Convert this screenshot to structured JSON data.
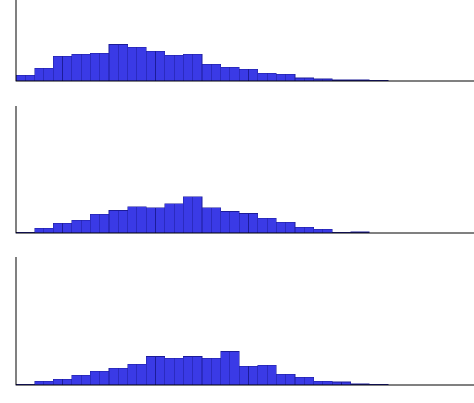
{
  "page": {
    "background": "#ffffff"
  },
  "colors": {
    "bar_fill": "#3a3ae6",
    "bar_edge": "#1c1c99",
    "axis": "#000000"
  },
  "chart_data": [
    {
      "type": "bar",
      "title": "",
      "xlabel": "",
      "ylabel": "",
      "grid": false,
      "legend": "none",
      "values": [
        6,
        6,
        13,
        13,
        25,
        25,
        27,
        27,
        28,
        28,
        37,
        37,
        34,
        34,
        30,
        30,
        26,
        26,
        27,
        27,
        17,
        17,
        14,
        14,
        12,
        12,
        8,
        8,
        7,
        7,
        3,
        3,
        2,
        2,
        1,
        1,
        1,
        1,
        0.5,
        0.5,
        0.2,
        0.2,
        0,
        0,
        0,
        0
      ],
      "ylim": [
        0,
        82
      ]
    },
    {
      "type": "bar",
      "title": "",
      "xlabel": "",
      "ylabel": "",
      "grid": false,
      "legend": "none",
      "values": [
        0.5,
        0.5,
        5,
        5,
        10,
        10,
        13,
        13,
        19,
        19,
        23,
        23,
        27,
        27,
        26,
        26,
        30,
        30,
        37,
        37,
        26,
        26,
        22,
        22,
        20,
        20,
        15,
        15,
        11,
        11,
        6,
        6,
        4,
        4,
        0.5,
        0.5,
        1,
        1,
        0.3,
        0.3,
        0.3,
        0.3,
        0.3,
        0.3,
        0.2,
        0.2
      ],
      "ylim": [
        0,
        130
      ]
    },
    {
      "type": "bar",
      "title": "",
      "xlabel": "",
      "ylabel": "",
      "grid": false,
      "legend": "none",
      "values": [
        0.5,
        0.5,
        4,
        4,
        6,
        6,
        10,
        10,
        14,
        14,
        17,
        17,
        21,
        21,
        29,
        29,
        27,
        27,
        29,
        29,
        27,
        27,
        34,
        34,
        19,
        19,
        20,
        20,
        11,
        11,
        8,
        8,
        4,
        4,
        3,
        3,
        1,
        1,
        0.5,
        0.5,
        0.3,
        0.3,
        0,
        0,
        0,
        0
      ],
      "ylim": [
        0,
        130
      ]
    }
  ]
}
